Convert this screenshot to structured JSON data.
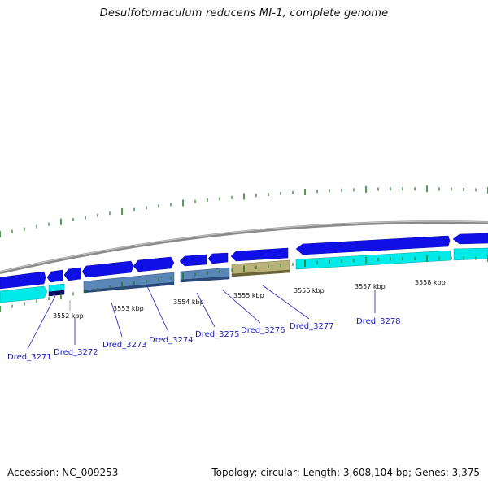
{
  "title": "Desulfotomaculum reducens MI-1, complete genome",
  "footer": {
    "accession": "Accession: NC_009253",
    "summary": "Topology: circular; Length: 3,608,104 bp; Genes: 3,375"
  },
  "colors": {
    "backbone": "#8a8a8a",
    "cds_forward": "#1010e6",
    "cds_reverse": "#00eaea",
    "rna_gene": "#5a86b8",
    "highlighted_gene": "#b8b27a",
    "ticks": "#1a7a1a",
    "label": "#1a1ab8"
  },
  "kbp_labels": [
    "3552 kbp",
    "3553 kbp",
    "3554 kbp",
    "3555 kbp",
    "3556 kbp",
    "3557 kbp",
    "3558 kbp"
  ],
  "gene_labels": [
    "Dred_3271",
    "Dred_3272",
    "Dred_3273",
    "Dred_3274",
    "Dred_3275",
    "Dred_3276",
    "Dred_3277",
    "Dred_3278"
  ]
}
